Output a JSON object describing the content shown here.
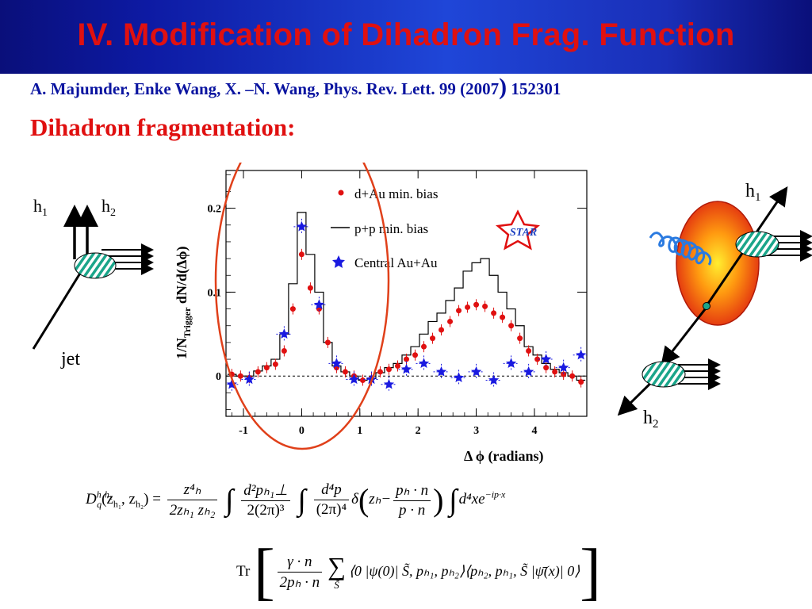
{
  "slide": {
    "title": "IV. Modification of Dihadron Frag. Function",
    "citation_main": "A. Majumder, Enke Wang, X. –N. Wang, Phys. Rev. Lett. 99 (2007",
    "citation_paren": ")",
    "citation_end": " 152301",
    "subheading": "Dihadron fragmentation:"
  },
  "left_diagram": {
    "label_h1": "h",
    "label_h1_sub": "1",
    "label_h2": "h",
    "label_h2_sub": "2",
    "label_jet": "jet"
  },
  "right_diagram": {
    "label_h1": "h",
    "label_h1_sub": "1",
    "label_h2": "h",
    "label_h2_sub": "2"
  },
  "chart_data": {
    "type": "scatter",
    "ylabel": "1/N",
    "ylabel_sub": "Trigger",
    "ylabel_rest": " dN/d(Δϕ)",
    "xlabel": "Δ ϕ (radians)",
    "xlim": [
      -1.3,
      4.9
    ],
    "ylim": [
      -0.048,
      0.245
    ],
    "x_ticks": [
      -1,
      0,
      1,
      2,
      3,
      4
    ],
    "x_tick_labels": [
      "-1",
      "0",
      "1",
      "2",
      "3",
      "4"
    ],
    "y_ticks": [
      0,
      0.1,
      0.2
    ],
    "y_tick_labels": [
      "0",
      "0.1",
      "0.2"
    ],
    "legend_position": "top-right",
    "logo_text": "STAR",
    "series": [
      {
        "name": "d+Au min. bias",
        "marker": "circle",
        "color": "#e01010",
        "x": [
          -1.2,
          -1.05,
          -0.9,
          -0.75,
          -0.6,
          -0.45,
          -0.3,
          -0.15,
          0.0,
          0.15,
          0.3,
          0.45,
          0.6,
          0.75,
          0.9,
          1.05,
          1.2,
          1.35,
          1.5,
          1.65,
          1.8,
          1.95,
          2.1,
          2.25,
          2.4,
          2.55,
          2.7,
          2.85,
          3.0,
          3.15,
          3.3,
          3.45,
          3.6,
          3.75,
          3.9,
          4.05,
          4.2,
          4.35,
          4.5,
          4.65,
          4.8
        ],
        "y": [
          0.002,
          0.0,
          -0.002,
          0.005,
          0.01,
          0.014,
          0.03,
          0.08,
          0.145,
          0.105,
          0.08,
          0.04,
          0.01,
          0.005,
          0.0,
          -0.005,
          -0.003,
          0.005,
          0.008,
          0.012,
          0.02,
          0.025,
          0.035,
          0.045,
          0.055,
          0.065,
          0.078,
          0.082,
          0.085,
          0.083,
          0.075,
          0.07,
          0.06,
          0.045,
          0.03,
          0.02,
          0.01,
          0.005,
          0.002,
          0.0,
          -0.007
        ]
      },
      {
        "name": "p+p min. bias",
        "marker": "step",
        "color": "#000000",
        "x": [
          -1.2,
          -1.05,
          -0.9,
          -0.75,
          -0.6,
          -0.45,
          -0.3,
          -0.15,
          0.0,
          0.15,
          0.3,
          0.45,
          0.6,
          0.75,
          0.9,
          1.05,
          1.2,
          1.35,
          1.5,
          1.65,
          1.8,
          1.95,
          2.1,
          2.25,
          2.4,
          2.55,
          2.7,
          2.85,
          3.0,
          3.15,
          3.3,
          3.45,
          3.6,
          3.75,
          3.9,
          4.05,
          4.2,
          4.35,
          4.5,
          4.65,
          4.8
        ],
        "y": [
          0.002,
          0.0,
          0.0,
          0.006,
          0.012,
          0.02,
          0.05,
          0.11,
          0.195,
          0.145,
          0.1,
          0.04,
          0.012,
          0.005,
          0.0,
          -0.005,
          -0.003,
          0.004,
          0.01,
          0.015,
          0.025,
          0.035,
          0.05,
          0.065,
          0.075,
          0.09,
          0.105,
          0.125,
          0.135,
          0.14,
          0.12,
          0.1,
          0.08,
          0.06,
          0.035,
          0.025,
          0.015,
          0.008,
          0.004,
          0.0,
          -0.005
        ]
      },
      {
        "name": "Central Au+Au",
        "marker": "star",
        "color": "#1a1ae0",
        "x": [
          -1.2,
          -0.9,
          -0.3,
          0.0,
          0.3,
          0.6,
          0.9,
          1.2,
          1.5,
          1.8,
          2.1,
          2.4,
          2.7,
          3.0,
          3.3,
          3.6,
          3.9,
          4.2,
          4.5,
          4.8
        ],
        "y": [
          -0.01,
          -0.004,
          0.05,
          0.178,
          0.085,
          0.015,
          -0.004,
          -0.004,
          -0.01,
          0.008,
          0.015,
          0.005,
          -0.002,
          0.005,
          -0.005,
          0.015,
          0.005,
          0.02,
          0.01,
          0.025
        ]
      }
    ]
  },
  "formulas": {
    "line1": {
      "D": "D",
      "D_sup": "h₁h₂",
      "D_sub": "q",
      "args": "(z",
      "args2": "h₁",
      "args3": ", z",
      "args4": "h₂",
      "args5": ") =",
      "f1_num": "z⁴ₕ",
      "f1_den": "2zₕ₁ zₕ₂",
      "integral": "∫",
      "f2_num": "d²pₕ₁⊥",
      "f2_den": "2(2π)³",
      "f3_num": "d⁴p",
      "f3_den": "(2π)⁴",
      "delta": "δ",
      "paren_open": "(",
      "zh": "zₕ−",
      "f4_num": "pₕ · n",
      "f4_den": "p · n",
      "paren_close": ")",
      "tail": "d⁴xe",
      "tail_sup": "−ip·x"
    },
    "line2": {
      "tr": "Tr",
      "bracket_open": "[",
      "f5_num": "γ · n",
      "f5_den": "2pₕ · n",
      "sum": "∑",
      "sum_sub": "S̃",
      "body": "⟨0 |ψ(0)| S̃, pₕ₁, pₕ₂⟩⟨pₕ₂, pₕ₁, S̃ |ψ̄(x)| 0⟩",
      "bracket_close": "]"
    }
  }
}
